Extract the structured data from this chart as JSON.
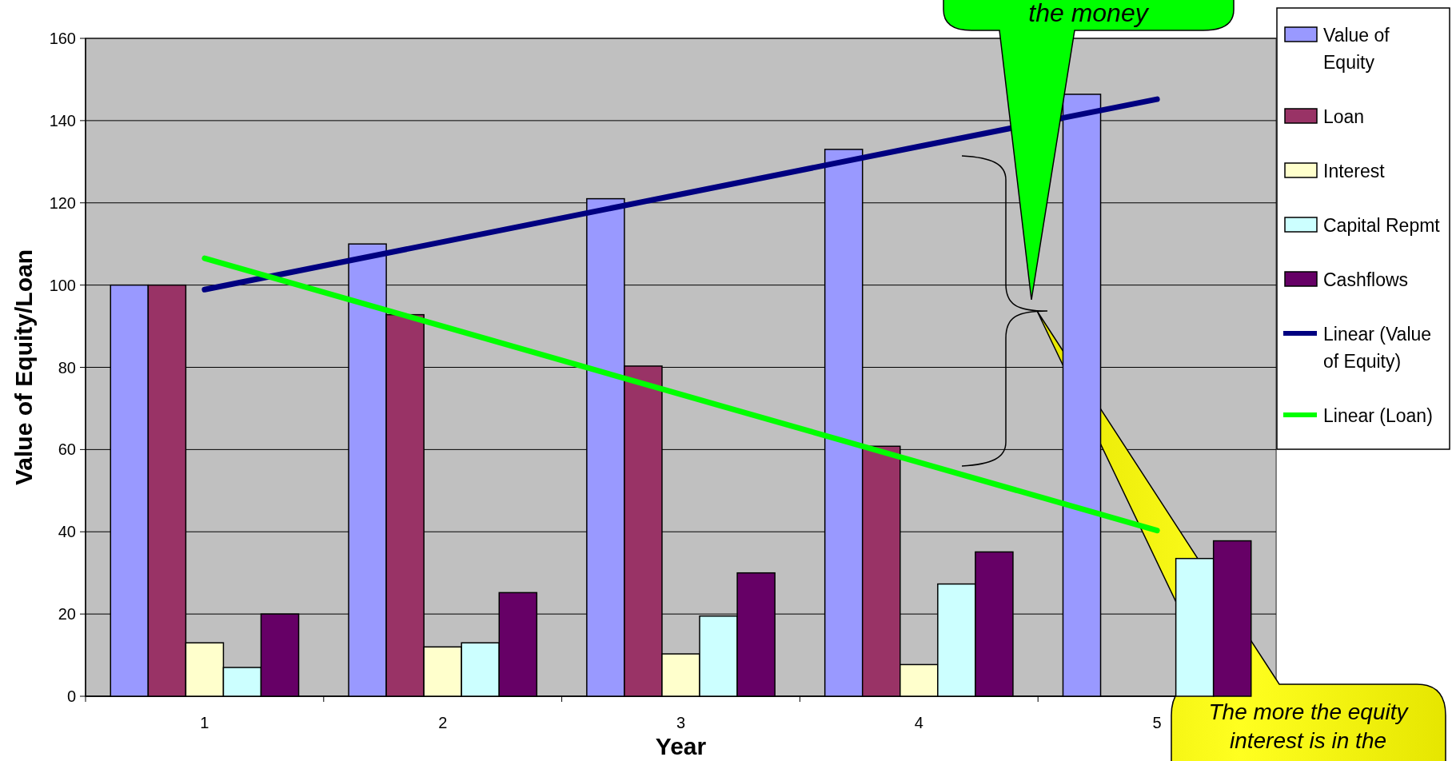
{
  "chart_data": {
    "type": "bar",
    "xlabel": "Year",
    "ylabel": "Value of Equity/Loan",
    "categories": [
      "1",
      "2",
      "3",
      "4",
      "5"
    ],
    "series": [
      {
        "name": "Value of Equity",
        "color": "#9999ff",
        "values": [
          100,
          110,
          121,
          133,
          146.4
        ]
      },
      {
        "name": "Loan",
        "color": "#993366",
        "values": [
          100,
          92.8,
          80.3,
          60.8,
          null
        ]
      },
      {
        "name": "Interest",
        "color": "#ffffcc",
        "values": [
          13,
          12,
          10.3,
          7.7,
          null
        ]
      },
      {
        "name": "Capital Repmt",
        "color": "#ccffff",
        "values": [
          7,
          13,
          19.5,
          27.3,
          33.5
        ]
      },
      {
        "name": "Cashflows",
        "color": "#660066",
        "values": [
          20,
          25.2,
          30,
          35.1,
          37.8
        ]
      },
      {
        "name": "Linear (Value of Equity)",
        "type": "line",
        "color": "#000080",
        "values": [
          98.9,
          110.5,
          122.1,
          133.7,
          145.2
        ]
      },
      {
        "name": "Linear (Loan)",
        "type": "line",
        "color": "#00ff00",
        "values": [
          106.5,
          90,
          73.4,
          56.9,
          40.3
        ]
      }
    ],
    "ylim": [
      0,
      160
    ],
    "yticks": [
      0,
      20,
      40,
      60,
      80,
      100,
      120,
      140,
      160
    ],
    "grid": "y",
    "legend": "right",
    "annotations": [
      "the money",
      "The more the equity interest is in the"
    ]
  }
}
